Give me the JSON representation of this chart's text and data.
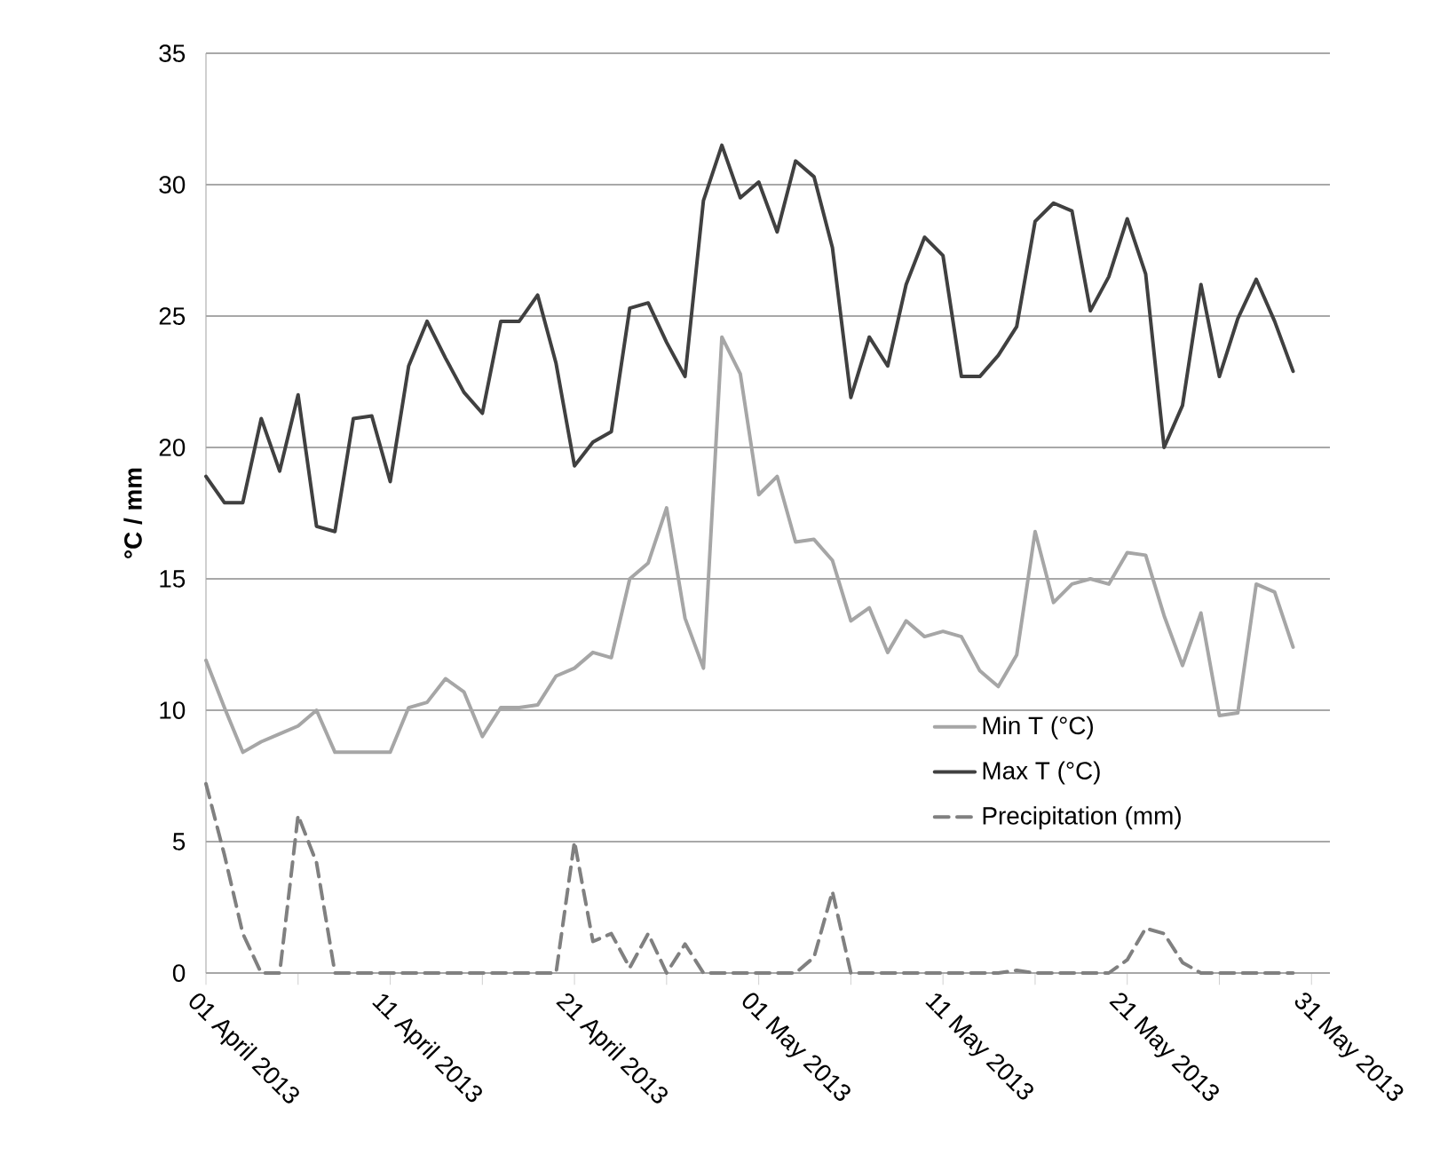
{
  "chart_data": {
    "type": "line",
    "ylabel": "°C / mm",
    "x": [
      "2013-04-01",
      "2013-04-02",
      "2013-04-03",
      "2013-04-04",
      "2013-04-05",
      "2013-04-06",
      "2013-04-07",
      "2013-04-08",
      "2013-04-09",
      "2013-04-10",
      "2013-04-11",
      "2013-04-12",
      "2013-04-13",
      "2013-04-14",
      "2013-04-15",
      "2013-04-16",
      "2013-04-17",
      "2013-04-18",
      "2013-04-19",
      "2013-04-20",
      "2013-04-21",
      "2013-04-22",
      "2013-04-23",
      "2013-04-24",
      "2013-04-25",
      "2013-04-26",
      "2013-04-27",
      "2013-04-28",
      "2013-04-29",
      "2013-04-30",
      "2013-05-01",
      "2013-05-02",
      "2013-05-03",
      "2013-05-04",
      "2013-05-05",
      "2013-05-06",
      "2013-05-07",
      "2013-05-08",
      "2013-05-09",
      "2013-05-10",
      "2013-05-11",
      "2013-05-12",
      "2013-05-13",
      "2013-05-14",
      "2013-05-15",
      "2013-05-16",
      "2013-05-17",
      "2013-05-18",
      "2013-05-19",
      "2013-05-20",
      "2013-05-21",
      "2013-05-22",
      "2013-05-23",
      "2013-05-24",
      "2013-05-25",
      "2013-05-26",
      "2013-05-27",
      "2013-05-28",
      "2013-05-29",
      "2013-05-30"
    ],
    "series": [
      {
        "name": "Min T (°C)",
        "color": "#a6a6a6",
        "line_style": "solid",
        "values": [
          11.9,
          10.1,
          8.4,
          8.8,
          9.1,
          9.4,
          10.0,
          8.4,
          8.4,
          8.4,
          8.4,
          10.1,
          10.3,
          11.2,
          10.7,
          9.0,
          10.1,
          10.1,
          10.2,
          11.3,
          11.6,
          12.2,
          12.0,
          15.0,
          15.6,
          17.7,
          13.5,
          11.6,
          24.2,
          22.8,
          18.2,
          18.9,
          16.4,
          16.5,
          15.7,
          13.4,
          13.9,
          12.2,
          13.4,
          12.8,
          13.0,
          12.8,
          11.5,
          10.9,
          12.1,
          16.8,
          14.1,
          14.8,
          15.0,
          14.8,
          16.0,
          15.9,
          13.6,
          11.7,
          13.7,
          9.8,
          9.9,
          14.8,
          14.5,
          12.4
        ]
      },
      {
        "name": "Max T (°C)",
        "color": "#404040",
        "line_style": "solid",
        "values": [
          18.9,
          17.9,
          17.9,
          21.1,
          19.1,
          22.0,
          17.0,
          16.8,
          21.1,
          21.2,
          18.7,
          23.1,
          24.8,
          23.4,
          22.1,
          21.3,
          24.8,
          24.8,
          25.8,
          23.2,
          19.3,
          20.2,
          20.6,
          25.3,
          25.5,
          24.0,
          22.7,
          29.4,
          31.5,
          29.5,
          30.1,
          28.2,
          30.9,
          30.3,
          27.6,
          21.9,
          24.2,
          23.1,
          26.2,
          28.0,
          27.3,
          22.7,
          22.7,
          23.5,
          24.6,
          28.6,
          29.3,
          29.0,
          25.2,
          26.5,
          28.7,
          26.6,
          20.0,
          21.6,
          26.2,
          22.7,
          24.9,
          26.4,
          24.8,
          22.9
        ]
      },
      {
        "name": "Precipitation (mm)",
        "color": "#808080",
        "line_style": "dashed",
        "values": [
          7.2,
          4.5,
          1.5,
          0,
          0,
          6.0,
          4.2,
          0,
          0,
          0,
          0,
          0,
          0,
          0,
          0,
          0,
          0,
          0,
          0,
          0,
          5.0,
          1.2,
          1.5,
          0.2,
          1.5,
          0,
          1.1,
          0,
          0,
          0,
          0,
          0,
          0,
          0.6,
          3.1,
          0,
          0,
          0,
          0,
          0,
          0,
          0,
          0,
          0,
          0.1,
          0,
          0,
          0,
          0,
          0,
          0.5,
          1.7,
          1.5,
          0.4,
          0,
          0,
          0,
          0,
          0,
          0
        ]
      }
    ],
    "xlim": [
      "2013-04-01",
      "2013-06-01"
    ],
    "xticks": [
      {
        "value": "2013-04-01",
        "label": "01 April 2013"
      },
      {
        "value": "2013-04-06",
        "label": null
      },
      {
        "value": "2013-04-11",
        "label": "11 April 2013"
      },
      {
        "value": "2013-04-16",
        "label": null
      },
      {
        "value": "2013-04-21",
        "label": "21 April 2013"
      },
      {
        "value": "2013-04-26",
        "label": null
      },
      {
        "value": "2013-05-01",
        "label": "01 May 2013"
      },
      {
        "value": "2013-05-06",
        "label": null
      },
      {
        "value": "2013-05-11",
        "label": "11 May 2013"
      },
      {
        "value": "2013-05-16",
        "label": null
      },
      {
        "value": "2013-05-21",
        "label": "21 May 2013"
      },
      {
        "value": "2013-05-26",
        "label": null
      },
      {
        "value": "2013-05-31",
        "label": "31 May 2013"
      }
    ],
    "ylim": [
      0,
      35
    ],
    "yticks": [
      0,
      5,
      10,
      15,
      20,
      25,
      30,
      35
    ],
    "grid": "y",
    "legend": "bottom right",
    "marker": "none"
  }
}
